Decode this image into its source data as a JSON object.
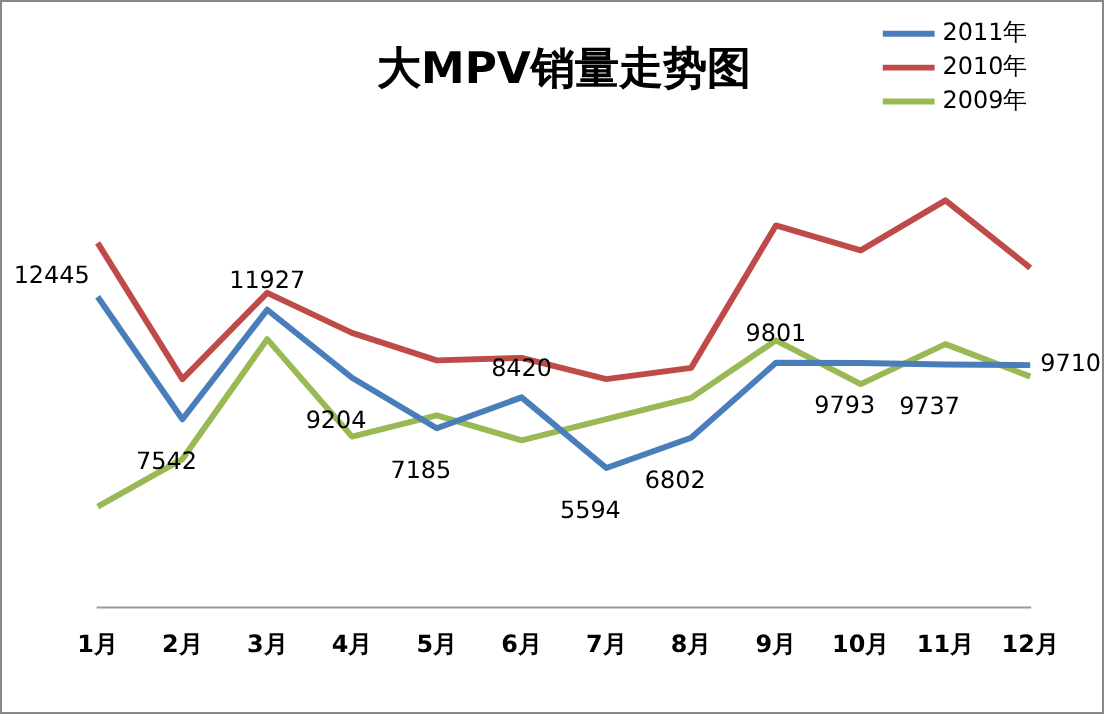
{
  "chart_data": {
    "type": "line",
    "title": "大MPV销量走势图",
    "categories": [
      "1月",
      "2月",
      "3月",
      "4月",
      "5月",
      "6月",
      "7月",
      "8月",
      "9月",
      "10月",
      "11月",
      "12月"
    ],
    "series": [
      {
        "name": "2011年",
        "color": "#4a7ebb",
        "values": [
          12445,
          7542,
          11927,
          9204,
          7185,
          8420,
          5594,
          6802,
          9801,
          9793,
          9737,
          9710
        ],
        "value_labels": [
          "12445",
          "7542",
          "11927",
          "9204",
          "7185",
          "8420",
          "5594",
          "6802",
          "9801",
          "9793",
          "9737",
          "9710"
        ]
      },
      {
        "name": "2010年",
        "color": "#be4b48",
        "values": [
          14600,
          9150,
          12600,
          11000,
          9900,
          10000,
          9150,
          9600,
          15300,
          14300,
          16300,
          13600
        ]
      },
      {
        "name": "2009年",
        "color": "#98b954",
        "values": [
          4050,
          5950,
          10750,
          6850,
          7700,
          6700,
          7550,
          8400,
          10700,
          8950,
          10550,
          9250
        ]
      }
    ],
    "tick_labels": "x",
    "legend": "top right",
    "marker": "none",
    "line_style": "solid",
    "grid": false
  }
}
